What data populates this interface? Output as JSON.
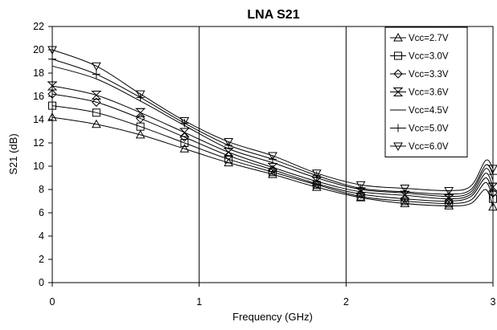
{
  "chart_data": {
    "type": "line",
    "title": "LNA S21",
    "xlabel": "Frequency (GHz)",
    "ylabel": "S21 (dB)",
    "xlim": [
      0,
      3
    ],
    "ylim": [
      0,
      22
    ],
    "xticks": [
      "0",
      "1",
      "2",
      "3"
    ],
    "yticks": [
      "0",
      "2",
      "4",
      "6",
      "8",
      "10",
      "12",
      "14",
      "16",
      "18",
      "20",
      "22"
    ],
    "grid": "vertical gridlines at x ticks",
    "legend_position": "top-right",
    "marker_x": [
      0,
      0.3,
      0.6,
      0.9,
      1.2,
      1.5,
      1.8,
      2.1,
      2.4,
      2.7,
      3.0
    ],
    "series": [
      {
        "name": "Vcc=2.7V",
        "marker": "triangle-up",
        "x": [
          0,
          0.3,
          0.6,
          0.9,
          1.2,
          1.5,
          1.8,
          2.1,
          2.4,
          2.7,
          2.85,
          2.95,
          3.0
        ],
        "y": [
          14.2,
          13.6,
          12.7,
          11.5,
          10.3,
          9.3,
          8.2,
          7.3,
          6.8,
          6.6,
          6.8,
          8.0,
          6.5
        ]
      },
      {
        "name": "Vcc=3.0V",
        "marker": "square",
        "x": [
          0,
          0.3,
          0.6,
          0.9,
          1.2,
          1.5,
          1.8,
          2.1,
          2.4,
          2.7,
          2.85,
          2.95,
          3.0
        ],
        "y": [
          15.2,
          14.6,
          13.4,
          12.0,
          10.6,
          9.5,
          8.4,
          7.4,
          7.0,
          6.8,
          7.1,
          8.6,
          7.2
        ]
      },
      {
        "name": "Vcc=3.3V",
        "marker": "diamond",
        "x": [
          0,
          0.3,
          0.6,
          0.9,
          1.2,
          1.5,
          1.8,
          2.1,
          2.4,
          2.7,
          2.85,
          2.95,
          3.0
        ],
        "y": [
          16.2,
          15.5,
          14.1,
          12.5,
          10.9,
          9.7,
          8.5,
          7.6,
          7.2,
          7.0,
          7.4,
          9.0,
          7.7
        ]
      },
      {
        "name": "Vcc=3.6V",
        "marker": "hourglass",
        "x": [
          0,
          0.3,
          0.6,
          0.9,
          1.2,
          1.5,
          1.8,
          2.1,
          2.4,
          2.7,
          2.85,
          2.95,
          3.0
        ],
        "y": [
          16.9,
          16.1,
          14.6,
          12.9,
          11.2,
          9.9,
          8.7,
          7.8,
          7.5,
          7.2,
          7.6,
          9.4,
          8.2
        ]
      },
      {
        "name": "Vcc=4.5V",
        "marker": "dash",
        "x": [
          0,
          0.3,
          0.6,
          0.9,
          1.2,
          1.5,
          1.8,
          2.1,
          2.4,
          2.7,
          2.85,
          2.95,
          3.0
        ],
        "y": [
          18.6,
          17.5,
          15.6,
          13.5,
          11.5,
          10.3,
          9.0,
          8.0,
          7.7,
          7.4,
          7.8,
          9.8,
          8.8
        ]
      },
      {
        "name": "Vcc=5.0V",
        "marker": "plus",
        "x": [
          0,
          0.3,
          0.6,
          0.9,
          1.2,
          1.5,
          1.8,
          2.1,
          2.4,
          2.7,
          2.85,
          2.95,
          3.0
        ],
        "y": [
          19.2,
          17.9,
          15.9,
          13.7,
          11.8,
          10.6,
          9.2,
          8.1,
          7.8,
          7.6,
          8.0,
          10.1,
          9.3
        ]
      },
      {
        "name": "Vcc=6.0V",
        "marker": "triangle-down",
        "x": [
          0,
          0.3,
          0.6,
          0.9,
          1.2,
          1.5,
          1.8,
          2.1,
          2.4,
          2.7,
          2.85,
          2.95,
          3.0
        ],
        "y": [
          20.0,
          18.6,
          16.2,
          13.9,
          12.1,
          10.9,
          9.4,
          8.4,
          8.1,
          7.9,
          8.3,
          10.5,
          9.8
        ]
      }
    ]
  }
}
